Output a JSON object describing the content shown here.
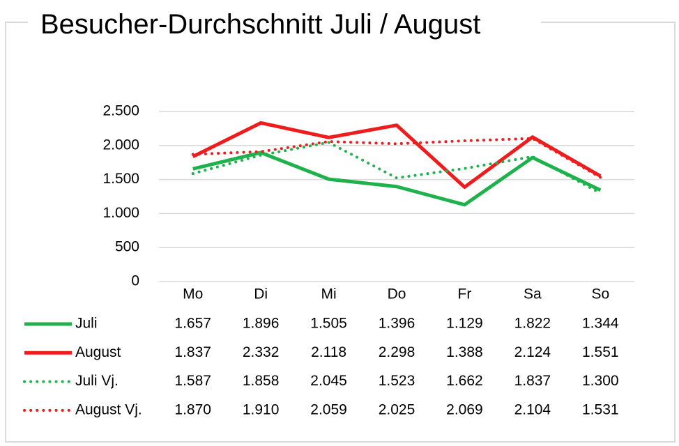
{
  "chart_data": {
    "type": "line",
    "title": "Besucher-Durchschnitt Juli / August",
    "categories": [
      "Mo",
      "Di",
      "Mi",
      "Do",
      "Fr",
      "Sa",
      "So"
    ],
    "ylim": [
      0,
      2500
    ],
    "yticks": [
      {
        "value": 0,
        "label": "0"
      },
      {
        "value": 500,
        "label": "500"
      },
      {
        "value": 1000,
        "label": "1.000"
      },
      {
        "value": 1500,
        "label": "1.500"
      },
      {
        "value": 2000,
        "label": "2.000"
      },
      {
        "value": 2500,
        "label": "2.500"
      }
    ],
    "grid": true,
    "legend": "bottom",
    "series": [
      {
        "name": "Juli",
        "color": "#1fb14c",
        "line_style": "solid",
        "values": [
          1657,
          1896,
          1505,
          1396,
          1129,
          1822,
          1344
        ],
        "value_labels": [
          "1.657",
          "1.896",
          "1.505",
          "1.396",
          "1.129",
          "1.822",
          "1.344"
        ]
      },
      {
        "name": "August",
        "color": "#ee1c1c",
        "line_style": "solid",
        "values": [
          1837,
          2332,
          2118,
          2298,
          1388,
          2124,
          1551
        ],
        "value_labels": [
          "1.837",
          "2.332",
          "2.118",
          "2.298",
          "1.388",
          "2.124",
          "1.551"
        ]
      },
      {
        "name": "Juli Vj.",
        "color": "#1fb14c",
        "line_style": "dotted",
        "values": [
          1587,
          1858,
          2045,
          1523,
          1662,
          1837,
          1300
        ],
        "value_labels": [
          "1.587",
          "1.858",
          "2.045",
          "1.523",
          "1.662",
          "1.837",
          "1.300"
        ]
      },
      {
        "name": "August Vj.",
        "color": "#ee1c1c",
        "line_style": "dotted",
        "values": [
          1870,
          1910,
          2059,
          2025,
          2069,
          2104,
          1531
        ],
        "value_labels": [
          "1.870",
          "1.910",
          "2.059",
          "2.025",
          "2.069",
          "2.104",
          "1.531"
        ]
      }
    ]
  }
}
